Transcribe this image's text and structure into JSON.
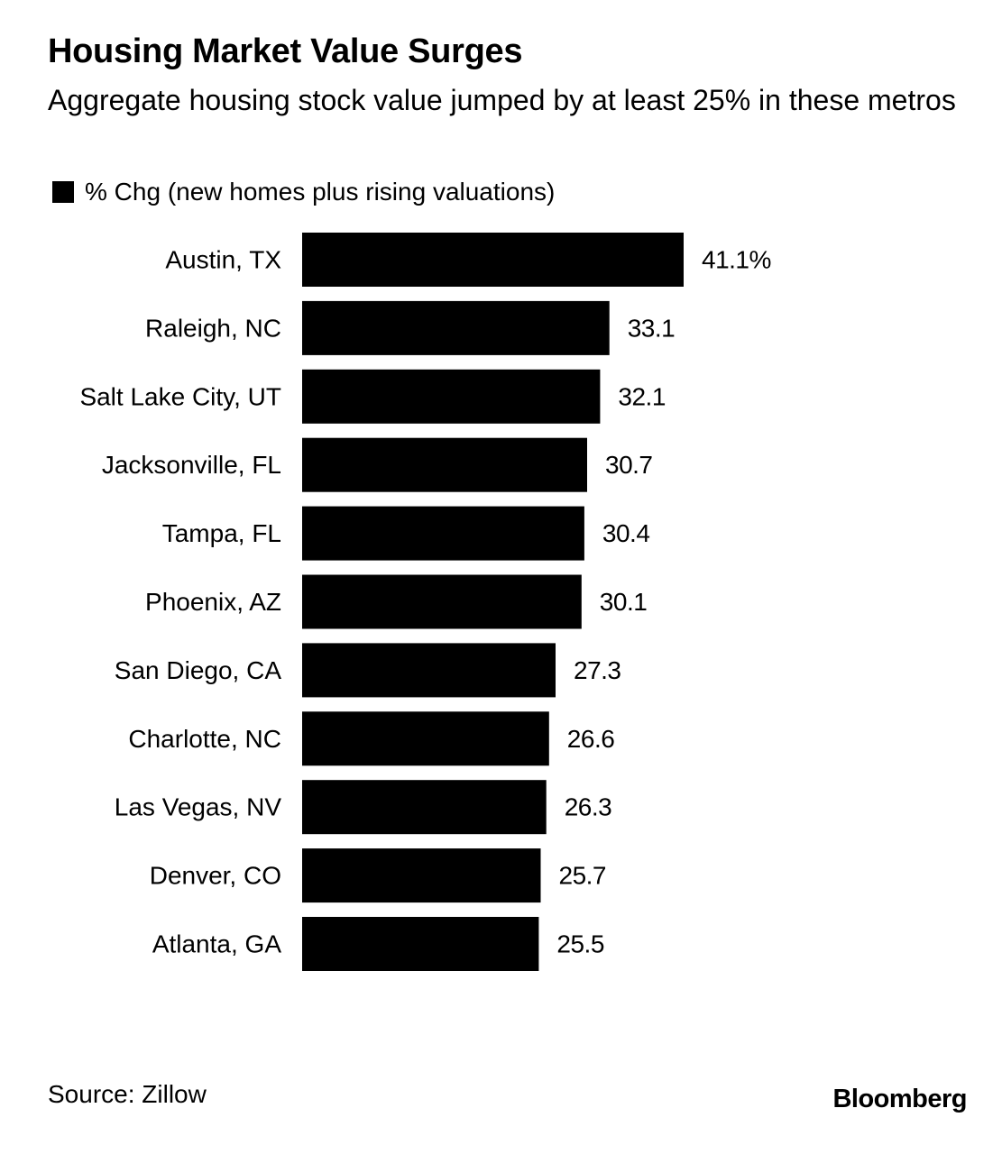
{
  "header": {
    "title": "Housing Market Value Surges",
    "subtitle": "Aggregate housing stock value jumped by at least 25% in these metros"
  },
  "legend": {
    "label": "% Chg (new homes plus rising valuations)"
  },
  "footer": {
    "source": "Source: Zillow",
    "brand": "Bloomberg"
  },
  "chart_data": {
    "type": "bar",
    "orientation": "horizontal",
    "title": "Housing Market Value Surges",
    "subtitle": "Aggregate housing stock value jumped by at least 25% in these metros",
    "xlabel": "",
    "ylabel": "",
    "grid": false,
    "legend_position": "top-left",
    "bar_color": "#000000",
    "categories": [
      "Austin, TX",
      "Raleigh, NC",
      "Salt Lake City, UT",
      "Jacksonville, FL",
      "Tampa, FL",
      "Phoenix, AZ",
      "San Diego, CA",
      "Charlotte, NC",
      "Las Vegas, NV",
      "Denver, CO",
      "Atlanta, GA"
    ],
    "series": [
      {
        "name": "% Chg (new homes plus rising valuations)",
        "values": [
          41.1,
          33.1,
          32.1,
          30.7,
          30.4,
          30.1,
          27.3,
          26.6,
          26.3,
          25.7,
          25.5
        ]
      }
    ],
    "data_labels": [
      "41.1%",
      "33.1",
      "32.1",
      "30.7",
      "30.4",
      "30.1",
      "27.3",
      "26.6",
      "26.3",
      "25.7",
      "25.5"
    ]
  }
}
